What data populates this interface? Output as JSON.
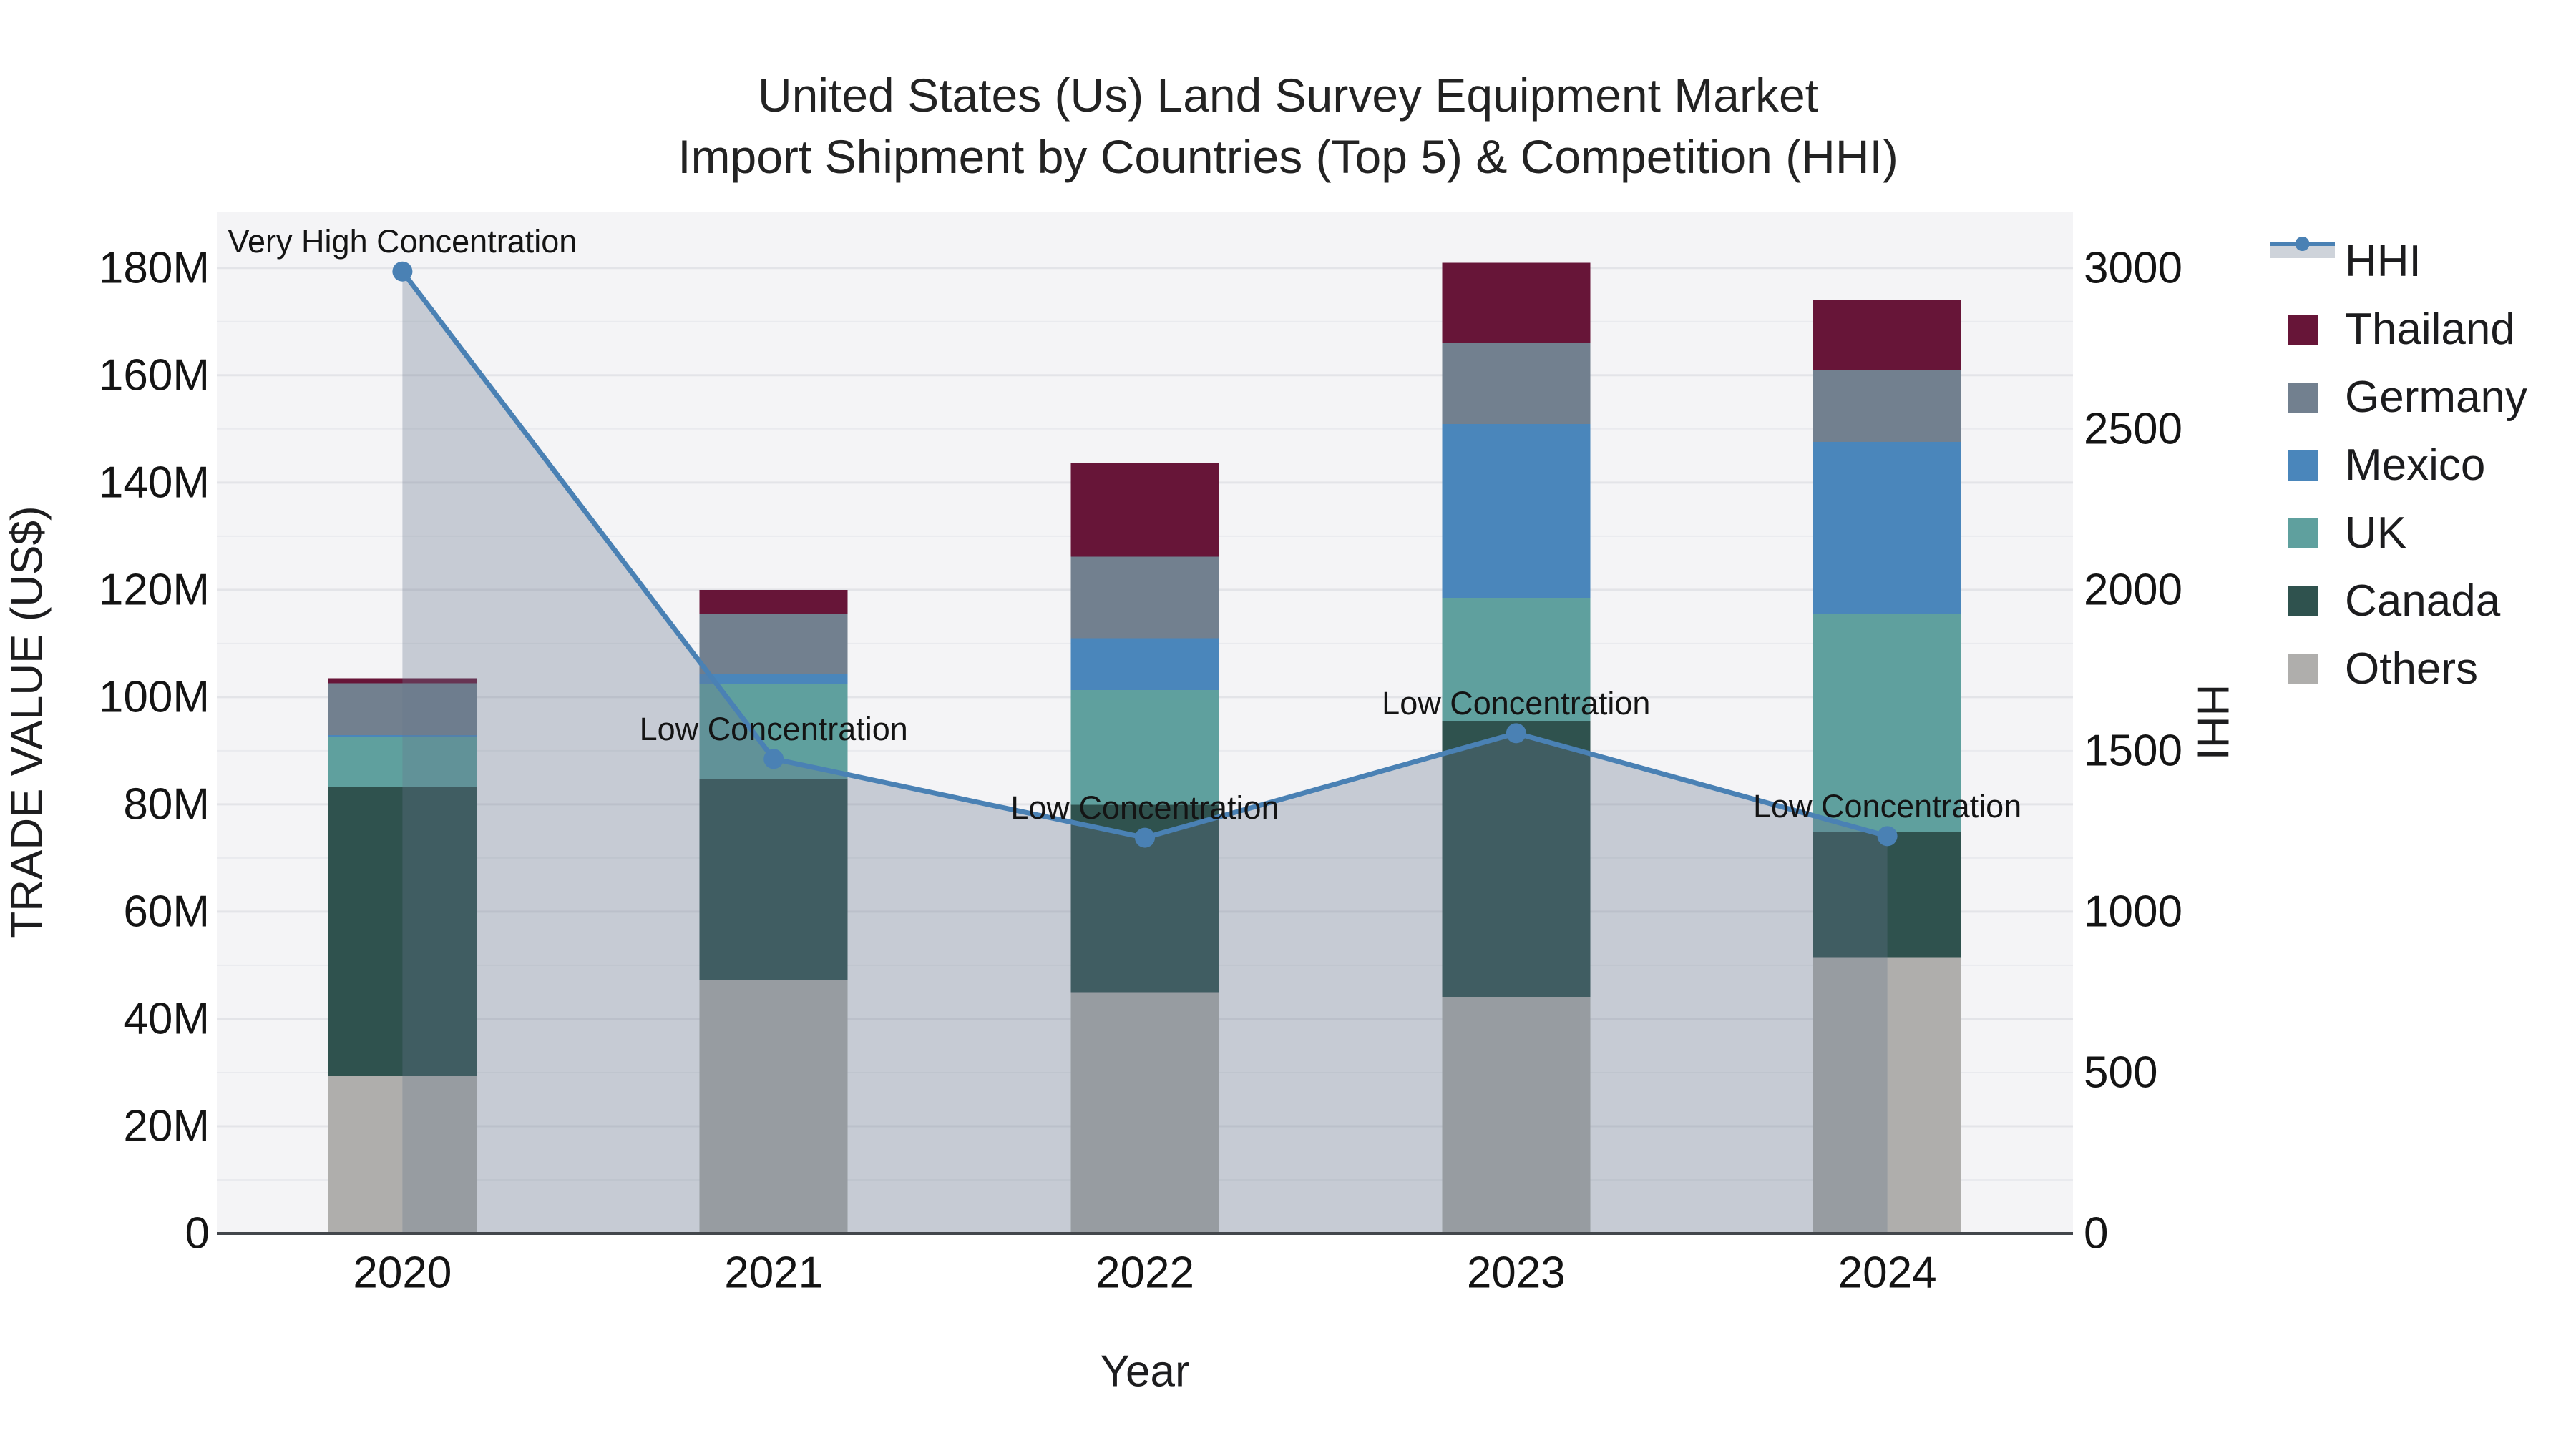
{
  "title": {
    "line1": "United States (Us) Land Survey Equipment Market",
    "line2": "Import Shipment by Countries (Top 5) & Competition (HHI)"
  },
  "axes": {
    "y_left": {
      "title": "TRADE VALUE (US$)",
      "tick_labels": [
        "0",
        "20M",
        "40M",
        "60M",
        "80M",
        "100M",
        "120M",
        "140M",
        "160M",
        "180M"
      ],
      "tick_values": [
        0,
        20,
        40,
        60,
        80,
        100,
        120,
        140,
        160,
        180
      ]
    },
    "y_right": {
      "title": "HHI",
      "tick_labels": [
        "0",
        "500",
        "1000",
        "1500",
        "2000",
        "2500",
        "3000"
      ],
      "tick_values": [
        0,
        500,
        1000,
        1500,
        2000,
        2500,
        3000
      ]
    },
    "x": {
      "title": "Year",
      "categories": [
        "2020",
        "2021",
        "2022",
        "2023",
        "2024"
      ]
    }
  },
  "chart_data": {
    "type": "bar",
    "subtype": "stacked-bars-with-hhi-line-area",
    "title": "United States (Us) Land Survey Equipment Market Import Shipment by Countries (Top 5) & Competition (HHI)",
    "xlabel": "Year",
    "ylabel_left": "TRADE VALUE (US$)",
    "ylabel_right": "HHI",
    "unit": "M US$",
    "categories": [
      "2020",
      "2021",
      "2022",
      "2023",
      "2024"
    ],
    "series": [
      {
        "name": "Others",
        "color": "#AFAEAC",
        "values": [
          29.3,
          47.2,
          45.0,
          44.1,
          51.4
        ]
      },
      {
        "name": "Canada",
        "color": "#2F524E",
        "values": [
          53.9,
          37.5,
          34.9,
          51.4,
          23.4
        ]
      },
      {
        "name": "UK",
        "color": "#5FA09E",
        "values": [
          9.3,
          17.7,
          21.4,
          23.0,
          40.8
        ]
      },
      {
        "name": "Mexico",
        "color": "#4A86BB",
        "values": [
          0.4,
          1.9,
          9.7,
          32.4,
          32.0
        ]
      },
      {
        "name": "Germany",
        "color": "#72808F",
        "values": [
          9.7,
          11.2,
          15.2,
          15.1,
          13.3
        ]
      },
      {
        "name": "Thailand",
        "color": "#671538",
        "values": [
          0.9,
          4.5,
          17.5,
          15.0,
          13.2
        ]
      }
    ],
    "bar_totals": [
      103.5,
      120.0,
      143.7,
      181.0,
      174.1
    ],
    "line_series": {
      "name": "HHI",
      "color": "#4A81B4",
      "marker_color": "#4A81B4",
      "area_fill": "rgba(104,118,140,0.32)",
      "values": [
        2990,
        1475,
        1230,
        1555,
        1235
      ]
    },
    "annotations": [
      {
        "category": "2020",
        "text": "Very High Concentration"
      },
      {
        "category": "2021",
        "text": "Low Concentration"
      },
      {
        "category": "2022",
        "text": "Low Concentration"
      },
      {
        "category": "2023",
        "text": "Low Concentration"
      },
      {
        "category": "2024",
        "text": "Low Concentration"
      }
    ],
    "ylim_left": [
      0,
      190.5
    ],
    "ylim_right": [
      0,
      3176
    ],
    "grid": "horizontal",
    "plot_background": "#F4F4F6",
    "legend_position": "outside-right"
  },
  "legend": {
    "items": [
      {
        "id": "hhi",
        "label": "HHI",
        "type": "line-area",
        "color": "#4A81B4",
        "band": "rgba(104,118,140,0.32)"
      },
      {
        "id": "thailand",
        "label": "Thailand",
        "type": "swatch",
        "color": "#671538"
      },
      {
        "id": "germany",
        "label": "Germany",
        "type": "swatch",
        "color": "#72808F"
      },
      {
        "id": "mexico",
        "label": "Mexico",
        "type": "swatch",
        "color": "#4A86BB"
      },
      {
        "id": "uk",
        "label": "UK",
        "type": "swatch",
        "color": "#5FA09E"
      },
      {
        "id": "canada",
        "label": "Canada",
        "type": "swatch",
        "color": "#2F524E"
      },
      {
        "id": "others",
        "label": "Others",
        "type": "swatch",
        "color": "#AFAEAC"
      }
    ]
  },
  "colors": {
    "plot_bg": "#F4F4F6",
    "grid_major": "#E3E4E8",
    "grid_minor": "#E9EAEE",
    "axis_line": "#43474C",
    "text": "#141414",
    "title_text": "#232323"
  }
}
